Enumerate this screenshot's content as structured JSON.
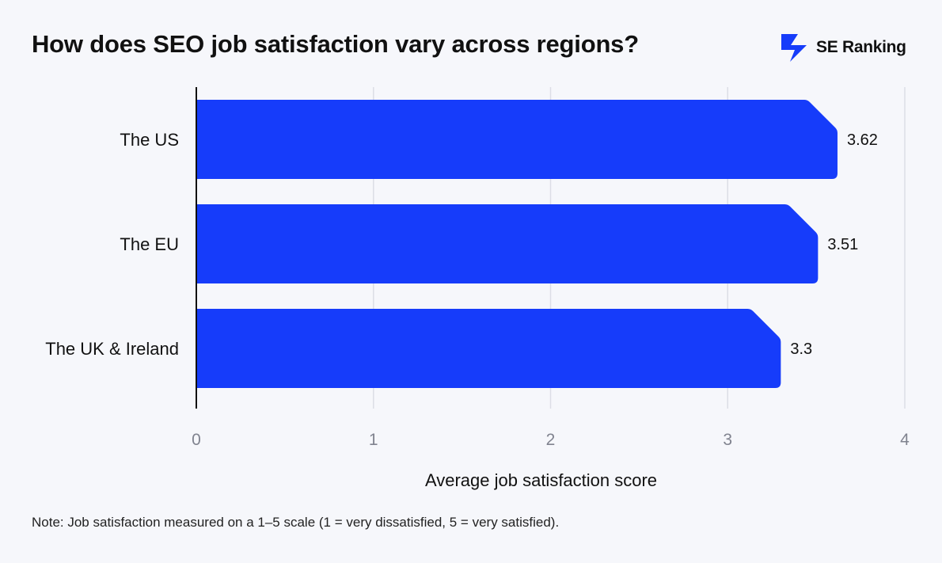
{
  "header": {
    "title": "How does SEO job satisfaction vary across regions?",
    "brand_name": "SE Ranking"
  },
  "note": "Note: Job satisfaction measured on a 1–5 scale (1 = very dissatisfied, 5 = very satisfied).",
  "colors": {
    "bar": "#163cfa",
    "background": "#f6f7fb",
    "gridline": "#dcdee6",
    "axis_tick_text": "#80838f",
    "text": "#111111"
  },
  "icons": {
    "brand": "se-ranking-bolt-logo-icon"
  },
  "chart_data": {
    "type": "bar",
    "orientation": "horizontal",
    "categories": [
      "The US",
      "The EU",
      "The UK & Ireland"
    ],
    "values": [
      3.62,
      3.51,
      3.3
    ],
    "value_labels": [
      "3.62",
      "3.51",
      "3.3"
    ],
    "title": "How does SEO job satisfaction vary across regions?",
    "xlabel": "Average job satisfaction score",
    "ylabel": "",
    "xlim": [
      0,
      4
    ],
    "xticks": [
      0,
      1,
      2,
      3,
      4
    ],
    "xtick_labels": [
      "0",
      "1",
      "2",
      "3",
      "4"
    ],
    "grid": true,
    "legend": "none"
  }
}
